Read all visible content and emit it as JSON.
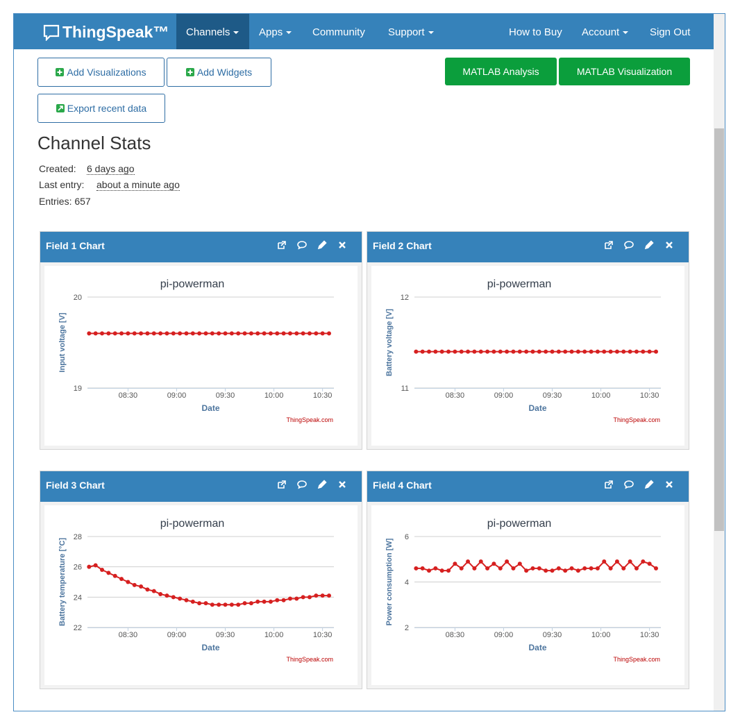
{
  "nav": {
    "brand": "ThingSpeak™",
    "items": [
      "Channels",
      "Apps",
      "Community",
      "Support"
    ],
    "right": [
      "How to Buy",
      "Account",
      "Sign Out"
    ]
  },
  "buttons": {
    "left": [
      "Add Visualizations",
      "Add Widgets",
      "Export recent data"
    ],
    "right": [
      "MATLAB Analysis",
      "MATLAB Visualization"
    ]
  },
  "stats": {
    "title": "Channel Stats",
    "created_label": "Created:",
    "created": "6 days ago",
    "last_label": "Last entry:",
    "last": "about a minute ago",
    "entries": "Entries: 657"
  },
  "chart_data": [
    {
      "panel_title": "Field 1 Chart",
      "type": "line",
      "title": "pi-powerman",
      "xlabel": "Date",
      "ylabel": "Input voltage [V]",
      "credit": "ThingSpeak.com",
      "color": "#d62020",
      "x": [
        486,
        490,
        494,
        498,
        502,
        506,
        510,
        514,
        518,
        522,
        526,
        530,
        534,
        538,
        542,
        546,
        550,
        554,
        558,
        562,
        566,
        570,
        574,
        578,
        582,
        586,
        590,
        594,
        598,
        602,
        606,
        610,
        614,
        618,
        622,
        626,
        630,
        634
      ],
      "values": [
        19.6,
        19.6,
        19.6,
        19.6,
        19.6,
        19.6,
        19.6,
        19.6,
        19.6,
        19.6,
        19.6,
        19.6,
        19.6,
        19.6,
        19.6,
        19.6,
        19.6,
        19.6,
        19.6,
        19.6,
        19.6,
        19.6,
        19.6,
        19.6,
        19.6,
        19.6,
        19.6,
        19.6,
        19.6,
        19.6,
        19.6,
        19.6,
        19.6,
        19.6,
        19.6,
        19.6,
        19.6,
        19.6
      ],
      "xlim": [
        485,
        637
      ],
      "xticks": [
        {
          "value": 510,
          "label": "08:30"
        },
        {
          "value": 540,
          "label": "09:00"
        },
        {
          "value": 570,
          "label": "09:30"
        },
        {
          "value": 600,
          "label": "10:00"
        },
        {
          "value": 630,
          "label": "10:30"
        }
      ],
      "ylim": [
        19,
        20
      ],
      "yticks": [
        19,
        20
      ],
      "grid": true
    },
    {
      "panel_title": "Field 2 Chart",
      "type": "line",
      "title": "pi-powerman",
      "xlabel": "Date",
      "ylabel": "Battery voltage [V]",
      "credit": "ThingSpeak.com",
      "color": "#d62020",
      "x": [
        486,
        490,
        494,
        498,
        502,
        506,
        510,
        514,
        518,
        522,
        526,
        530,
        534,
        538,
        542,
        546,
        550,
        554,
        558,
        562,
        566,
        570,
        574,
        578,
        582,
        586,
        590,
        594,
        598,
        602,
        606,
        610,
        614,
        618,
        622,
        626,
        630,
        634
      ],
      "values": [
        11.4,
        11.4,
        11.4,
        11.4,
        11.4,
        11.4,
        11.4,
        11.4,
        11.4,
        11.4,
        11.4,
        11.4,
        11.4,
        11.4,
        11.4,
        11.4,
        11.4,
        11.4,
        11.4,
        11.4,
        11.4,
        11.4,
        11.4,
        11.4,
        11.4,
        11.4,
        11.4,
        11.4,
        11.4,
        11.4,
        11.4,
        11.4,
        11.4,
        11.4,
        11.4,
        11.4,
        11.4,
        11.4
      ],
      "xlim": [
        485,
        637
      ],
      "xticks": [
        {
          "value": 510,
          "label": "08:30"
        },
        {
          "value": 540,
          "label": "09:00"
        },
        {
          "value": 570,
          "label": "09:30"
        },
        {
          "value": 600,
          "label": "10:00"
        },
        {
          "value": 630,
          "label": "10:30"
        }
      ],
      "ylim": [
        11,
        12
      ],
      "yticks": [
        11,
        12
      ],
      "grid": true
    },
    {
      "panel_title": "Field 3 Chart",
      "type": "line",
      "title": "pi-powerman",
      "xlabel": "Date",
      "ylabel": "Battery temperature [°C]",
      "credit": "ThingSpeak.com",
      "color": "#d62020",
      "x": [
        486,
        490,
        494,
        498,
        502,
        506,
        510,
        514,
        518,
        522,
        526,
        530,
        534,
        538,
        542,
        546,
        550,
        554,
        558,
        562,
        566,
        570,
        574,
        578,
        582,
        586,
        590,
        594,
        598,
        602,
        606,
        610,
        614,
        618,
        622,
        626,
        630,
        634
      ],
      "values": [
        26.0,
        26.1,
        25.8,
        25.6,
        25.4,
        25.2,
        25.0,
        24.8,
        24.7,
        24.5,
        24.4,
        24.2,
        24.1,
        24.0,
        23.9,
        23.8,
        23.7,
        23.6,
        23.6,
        23.5,
        23.5,
        23.5,
        23.5,
        23.5,
        23.6,
        23.6,
        23.7,
        23.7,
        23.7,
        23.8,
        23.8,
        23.9,
        23.9,
        24.0,
        24.0,
        24.1,
        24.1,
        24.1
      ],
      "xlim": [
        485,
        637
      ],
      "xticks": [
        {
          "value": 510,
          "label": "08:30"
        },
        {
          "value": 540,
          "label": "09:00"
        },
        {
          "value": 570,
          "label": "09:30"
        },
        {
          "value": 600,
          "label": "10:00"
        },
        {
          "value": 630,
          "label": "10:30"
        }
      ],
      "ylim": [
        22,
        28
      ],
      "yticks": [
        22,
        24,
        26,
        28
      ],
      "grid": true
    },
    {
      "panel_title": "Field 4 Chart",
      "type": "line",
      "title": "pi-powerman",
      "xlabel": "Date",
      "ylabel": "Power consumption [W]",
      "credit": "ThingSpeak.com",
      "color": "#d62020",
      "x": [
        486,
        490,
        494,
        498,
        502,
        506,
        510,
        514,
        518,
        522,
        526,
        530,
        534,
        538,
        542,
        546,
        550,
        554,
        558,
        562,
        566,
        570,
        574,
        578,
        582,
        586,
        590,
        594,
        598,
        602,
        606,
        610,
        614,
        618,
        622,
        626,
        630,
        634
      ],
      "values": [
        4.6,
        4.6,
        4.5,
        4.6,
        4.5,
        4.5,
        4.8,
        4.6,
        4.9,
        4.6,
        4.9,
        4.6,
        4.8,
        4.6,
        4.9,
        4.6,
        4.8,
        4.5,
        4.6,
        4.6,
        4.5,
        4.5,
        4.6,
        4.5,
        4.6,
        4.5,
        4.6,
        4.6,
        4.6,
        4.9,
        4.6,
        4.9,
        4.6,
        4.9,
        4.6,
        4.9,
        4.8,
        4.6
      ],
      "xlim": [
        485,
        637
      ],
      "xticks": [
        {
          "value": 510,
          "label": "08:30"
        },
        {
          "value": 540,
          "label": "09:00"
        },
        {
          "value": 570,
          "label": "09:30"
        },
        {
          "value": 600,
          "label": "10:00"
        },
        {
          "value": 630,
          "label": "10:30"
        }
      ],
      "ylim": [
        2,
        6
      ],
      "yticks": [
        2,
        4,
        6
      ],
      "grid": true
    }
  ]
}
